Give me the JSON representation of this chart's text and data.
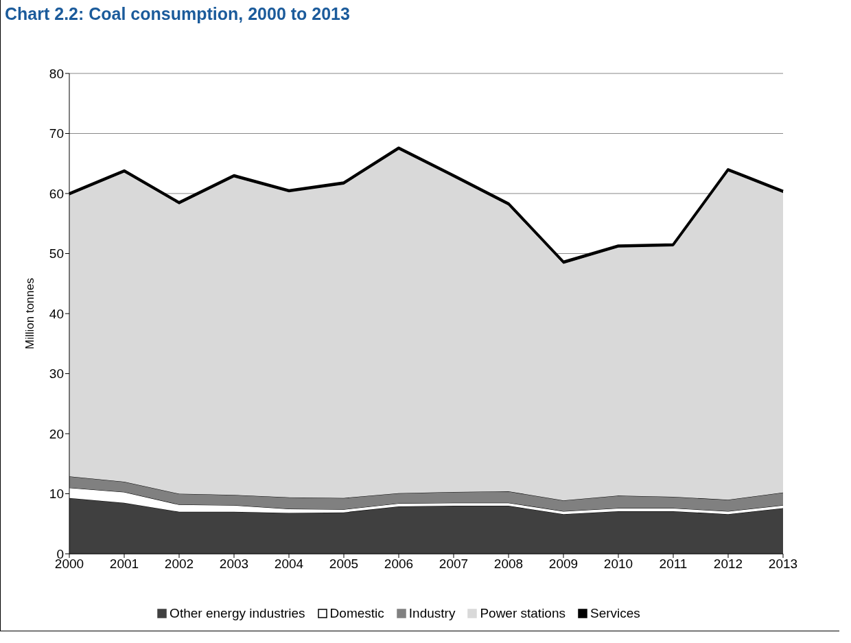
{
  "chart_data": {
    "type": "area",
    "title": "Chart 2.2:  Coal consumption, 2000 to 2013",
    "ylabel": "Million tonnes",
    "categories": [
      "2000",
      "2001",
      "2002",
      "2003",
      "2004",
      "2005",
      "2006",
      "2007",
      "2008",
      "2009",
      "2010",
      "2011",
      "2012",
      "2013"
    ],
    "stacked": true,
    "series": [
      {
        "name": "Other energy industries",
        "color": "#404040",
        "values": [
          9.3,
          8.5,
          7.0,
          7.0,
          6.8,
          6.9,
          7.9,
          8.0,
          8.0,
          6.6,
          7.1,
          7.1,
          6.6,
          7.6
        ]
      },
      {
        "name": "Domestic",
        "color": "#ffffff",
        "values": [
          1.7,
          1.8,
          1.2,
          1.1,
          0.7,
          0.5,
          0.5,
          0.5,
          0.5,
          0.5,
          0.5,
          0.5,
          0.5,
          0.5
        ]
      },
      {
        "name": "Industry",
        "color": "#808080",
        "values": [
          1.9,
          1.7,
          1.8,
          1.7,
          1.9,
          1.9,
          1.7,
          1.8,
          1.9,
          1.8,
          2.1,
          1.9,
          1.9,
          2.1
        ]
      },
      {
        "name": "Power stations",
        "color": "#d9d9d9",
        "values": [
          46.8,
          51.5,
          48.2,
          52.9,
          50.8,
          52.2,
          57.2,
          52.4,
          47.6,
          39.4,
          41.3,
          41.7,
          54.7,
          49.9
        ]
      },
      {
        "name": "Services",
        "color": "#000000",
        "values": [
          0.3,
          0.3,
          0.3,
          0.3,
          0.3,
          0.3,
          0.3,
          0.3,
          0.3,
          0.3,
          0.3,
          0.3,
          0.3,
          0.3
        ]
      }
    ],
    "ylim": [
      0,
      80
    ],
    "yticks": [
      0,
      10,
      20,
      30,
      40,
      50,
      60,
      70,
      80
    ],
    "grid": "y",
    "legend": "bottom"
  }
}
